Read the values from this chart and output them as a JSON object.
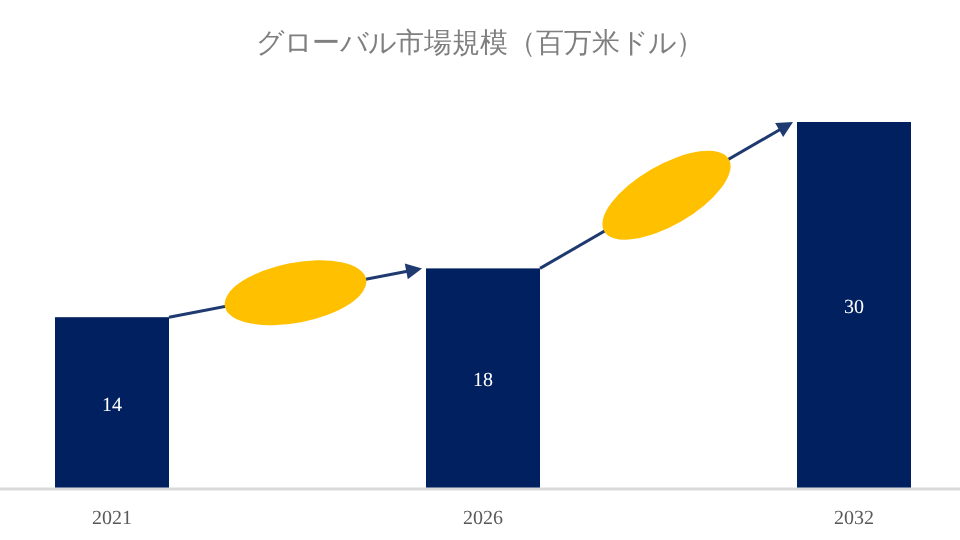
{
  "chart_data": {
    "type": "bar",
    "title": "グローバル市場規模（百万米ドル）",
    "categories": [
      "2021",
      "2026",
      "2032"
    ],
    "values": [
      14,
      18,
      30
    ],
    "color": "#002060",
    "data_labels": true
  }
}
